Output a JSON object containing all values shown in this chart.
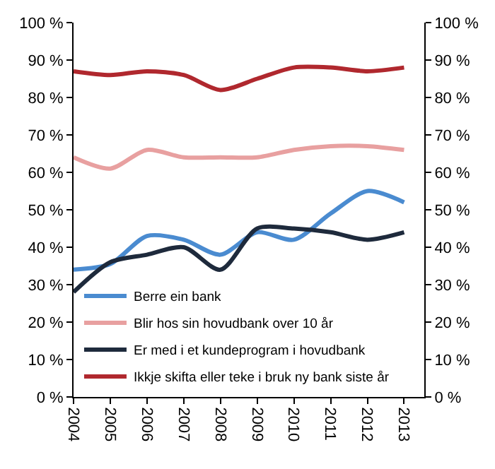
{
  "chart_data": {
    "type": "line",
    "categories": [
      "2004",
      "2005",
      "2006",
      "2007",
      "2008",
      "2009",
      "2010",
      "2011",
      "2012",
      "2013"
    ],
    "series": [
      {
        "name": "Berre ein bank",
        "color": "#4a8bd0",
        "values": [
          34,
          35.5,
          43,
          42,
          38,
          44,
          42,
          49,
          55,
          52
        ]
      },
      {
        "name": "Blir hos sin hovudbank over 10 år",
        "color": "#e8a0a0",
        "values": [
          64,
          61,
          66,
          64,
          64,
          64,
          66,
          67,
          67,
          66
        ]
      },
      {
        "name": "Er med i et kundeprogram i hovudbank",
        "color": "#1e2a3c",
        "values": [
          28,
          36,
          38,
          40,
          34,
          45,
          45,
          44,
          42,
          44
        ]
      },
      {
        "name": "Ikkje skifta eller teke i bruk ny bank siste år",
        "color": "#b0282e",
        "values": [
          87,
          86,
          87,
          86,
          82,
          85,
          88,
          88,
          87,
          88
        ]
      }
    ],
    "ylim": [
      0,
      100
    ],
    "yticks": [
      {
        "value": 0,
        "label": "0 %"
      },
      {
        "value": 10,
        "label": "10 %"
      },
      {
        "value": 20,
        "label": "20 %"
      },
      {
        "value": 30,
        "label": "30 %"
      },
      {
        "value": 40,
        "label": "40 %"
      },
      {
        "value": 50,
        "label": "50 %"
      },
      {
        "value": 60,
        "label": "60 %"
      },
      {
        "value": 70,
        "label": "70 %"
      },
      {
        "value": 80,
        "label": "80 %"
      },
      {
        "value": 90,
        "label": "90 %"
      },
      {
        "value": 100,
        "label": "100 %"
      }
    ],
    "y2lim": [
      0,
      100
    ],
    "y2ticks": [
      {
        "value": 0,
        "label": "0 %"
      },
      {
        "value": 10,
        "label": "10 %"
      },
      {
        "value": 20,
        "label": "20 %"
      },
      {
        "value": 30,
        "label": "30 %"
      },
      {
        "value": 40,
        "label": "40 %"
      },
      {
        "value": 50,
        "label": "50 %"
      },
      {
        "value": 60,
        "label": "60 %"
      },
      {
        "value": 70,
        "label": "70 %"
      },
      {
        "value": 80,
        "label": "80 %"
      },
      {
        "value": 90,
        "label": "90 %"
      },
      {
        "value": 100,
        "label": "100 %"
      }
    ],
    "legend": "bottom left",
    "marker": "none",
    "line_style": "solid"
  }
}
